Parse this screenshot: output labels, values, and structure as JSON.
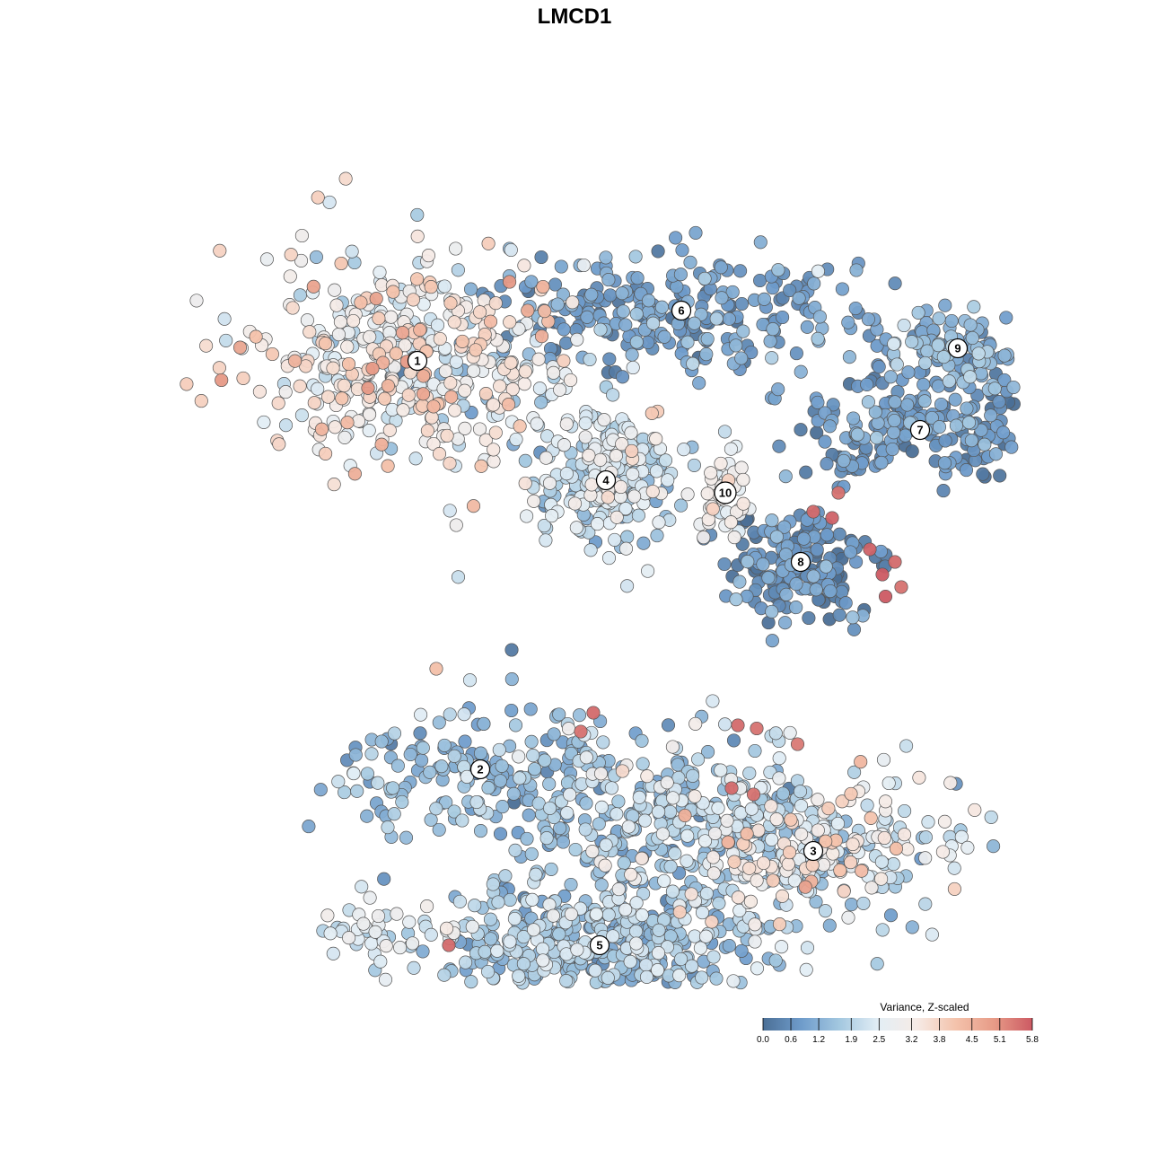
{
  "chart_data": {
    "type": "scatter",
    "title": "LMCD1",
    "xlabel": "",
    "ylabel": "",
    "grid": false,
    "legend_placement": "bottom-right",
    "legend": {
      "title": "Variance, Z-scaled",
      "ticks": [
        "0.0",
        "0.6",
        "1.2",
        "1.9",
        "2.5",
        "3.2",
        "3.8",
        "4.5",
        "5.1",
        "5.8"
      ],
      "range": [
        0.0,
        5.8
      ],
      "colors": [
        "#4b6f96",
        "#6f9ccb",
        "#a4c8e0",
        "#e3eef5",
        "#f6ebe6",
        "#f4c3ac",
        "#e79b87",
        "#cc5a63"
      ]
    },
    "clusters": [
      {
        "id": "1",
        "x": -2.5,
        "y": 3.4,
        "sx": 1.3,
        "sy": 0.9,
        "n": 460,
        "mean": 3.0,
        "sd": 0.85
      },
      {
        "id": "2",
        "x": -1.5,
        "y": -3.1,
        "sx": 1.1,
        "sy": 0.55,
        "n": 180,
        "mean": 1.35,
        "sd": 0.5
      },
      {
        "id": "3",
        "x": 3.8,
        "y": -4.4,
        "sx": 1.1,
        "sy": 0.6,
        "n": 260,
        "mean": 2.6,
        "sd": 0.85
      },
      {
        "id": "4",
        "x": 0.5,
        "y": 1.5,
        "sx": 0.6,
        "sy": 0.55,
        "n": 240,
        "mean": 2.2,
        "sd": 0.6
      },
      {
        "id": "5",
        "x": 0.4,
        "y": -5.9,
        "sx": 1.4,
        "sy": 0.7,
        "n": 520,
        "mean": 1.6,
        "sd": 0.55
      },
      {
        "id": "6",
        "x": 1.7,
        "y": 4.2,
        "sx": 1.5,
        "sy": 0.45,
        "n": 260,
        "mean": 0.85,
        "sd": 0.45
      },
      {
        "id": "7",
        "x": 5.5,
        "y": 2.3,
        "sx": 1.1,
        "sy": 0.4,
        "n": 210,
        "mean": 0.7,
        "sd": 0.4
      },
      {
        "id": "8",
        "x": 3.6,
        "y": 0.2,
        "sx": 0.55,
        "sy": 0.45,
        "n": 170,
        "mean": 0.5,
        "sd": 0.5
      },
      {
        "id": "9",
        "x": 6.1,
        "y": 3.6,
        "sx": 0.7,
        "sy": 0.3,
        "n": 120,
        "mean": 1.2,
        "sd": 0.45
      },
      {
        "id": "10",
        "x": 2.4,
        "y": 1.3,
        "sx": 0.22,
        "sy": 0.35,
        "n": 45,
        "mean": 3.0,
        "sd": 0.3
      },
      {
        "id": "",
        "x": 1.7,
        "y": -3.8,
        "sx": 1.2,
        "sy": 0.6,
        "n": 260,
        "mean": 1.9,
        "sd": 0.65
      },
      {
        "id": "",
        "x": -3.2,
        "y": -5.7,
        "sx": 0.5,
        "sy": 0.22,
        "n": 40,
        "mean": 2.4,
        "sd": 0.5
      }
    ],
    "outliers": [
      {
        "x": 4.9,
        "y": -0.0,
        "v": 5.8
      },
      {
        "x": 5.1,
        "y": 0.2,
        "v": 5.6
      },
      {
        "x": 4.7,
        "y": 0.4,
        "v": 5.7
      },
      {
        "x": 5.2,
        "y": -0.2,
        "v": 5.5
      },
      {
        "x": 4.95,
        "y": -0.35,
        "v": 5.8
      },
      {
        "x": 3.8,
        "y": 1.0,
        "v": 5.6
      },
      {
        "x": 4.1,
        "y": 0.9,
        "v": 5.7
      },
      {
        "x": 4.2,
        "y": 1.3,
        "v": 5.5
      },
      {
        "x": 2.6,
        "y": -2.4,
        "v": 5.6
      },
      {
        "x": 2.9,
        "y": -2.45,
        "v": 5.5
      },
      {
        "x": 3.55,
        "y": -2.7,
        "v": 5.4
      },
      {
        "x": 2.5,
        "y": -3.4,
        "v": 5.6
      },
      {
        "x": 2.85,
        "y": -3.5,
        "v": 5.5
      },
      {
        "x": 0.3,
        "y": -2.2,
        "v": 5.6
      },
      {
        "x": 0.1,
        "y": -2.5,
        "v": 5.5
      },
      {
        "x": -2.0,
        "y": -5.9,
        "v": 5.6
      },
      {
        "x": -2.2,
        "y": -1.5,
        "v": 4.2
      },
      {
        "x": -1.0,
        "y": -1.2,
        "v": 0.2
      }
    ]
  }
}
